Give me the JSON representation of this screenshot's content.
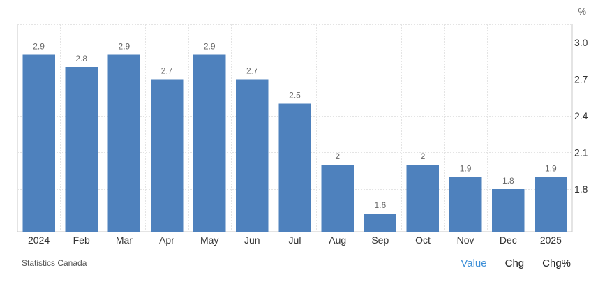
{
  "chart_data": {
    "type": "bar",
    "categories": [
      "2024",
      "Feb",
      "Mar",
      "Apr",
      "May",
      "Jun",
      "Jul",
      "Aug",
      "Sep",
      "Oct",
      "Nov",
      "Dec",
      "2025"
    ],
    "values": [
      2.9,
      2.8,
      2.9,
      2.7,
      2.9,
      2.7,
      2.5,
      2.0,
      1.6,
      2.0,
      1.9,
      1.8,
      1.9
    ],
    "data_labels": [
      "2.9",
      "2.8",
      "2.9",
      "2.7",
      "2.9",
      "2.7",
      "2.5",
      "2",
      "1.6",
      "2",
      "1.9",
      "1.8",
      "1.9"
    ],
    "y_ticks": [
      "1.8",
      "2.1",
      "2.4",
      "2.7",
      "3.0"
    ],
    "y_unit": "%",
    "ylim": [
      1.45,
      3.15
    ],
    "y_axis_position": "right",
    "grid": true,
    "bar_color": "#4e81bd"
  },
  "footer": {
    "source": "Statistics Canada",
    "tabs": [
      {
        "label": "Value",
        "active": true
      },
      {
        "label": "Chg",
        "active": false
      },
      {
        "label": "Chg%",
        "active": false
      }
    ]
  },
  "colors": {
    "active_tab": "#3d8fd7",
    "bar": "#4e81bd"
  }
}
